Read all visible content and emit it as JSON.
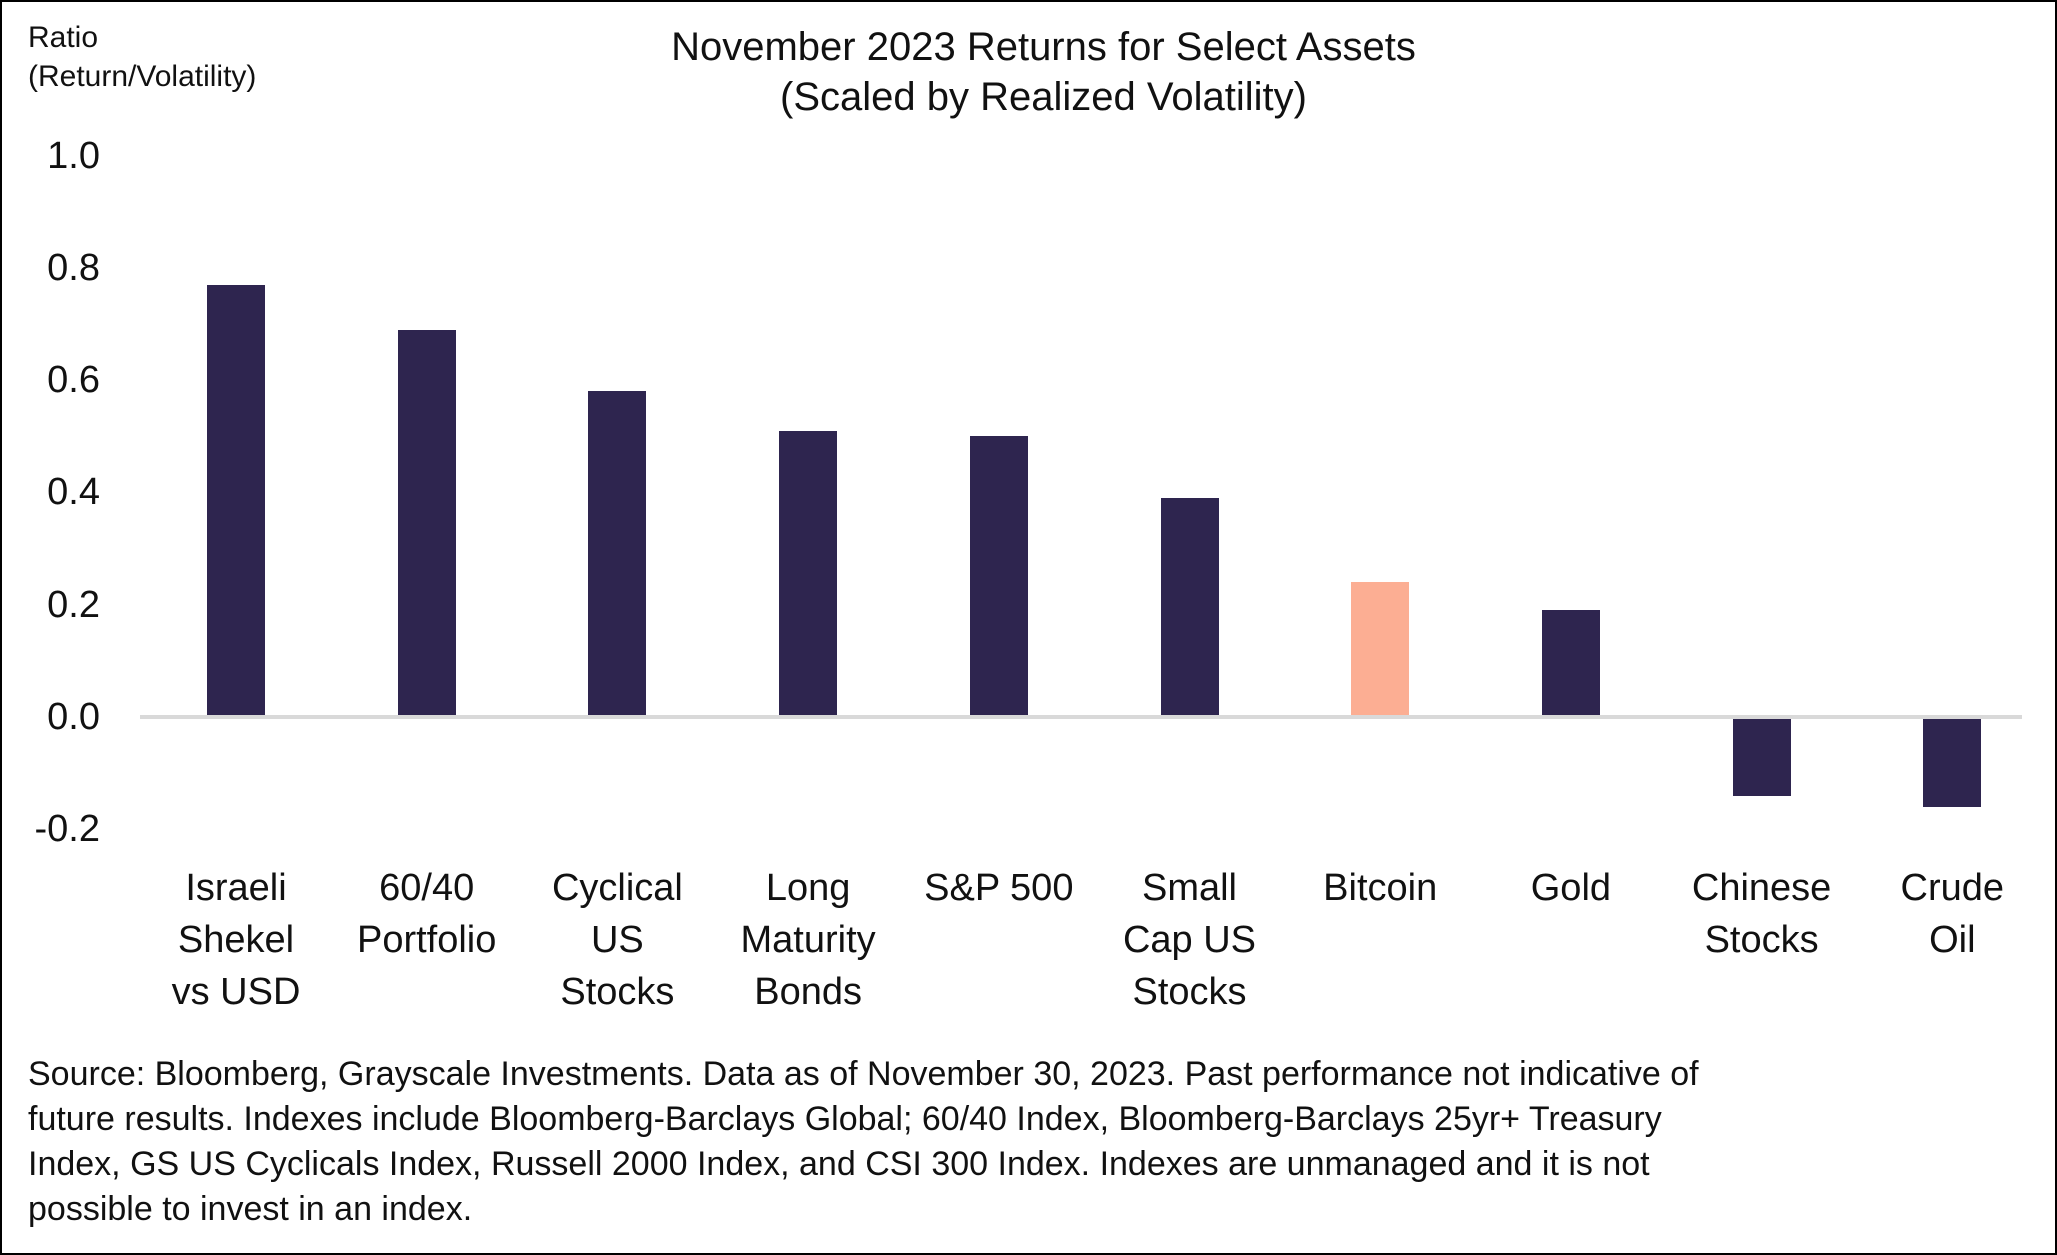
{
  "header": {
    "y_axis_title_lines": [
      "Ratio",
      "(Return/Volatility)"
    ],
    "title_lines": [
      "November 2023 Returns for Select Assets",
      "(Scaled by Realized Volatility)"
    ]
  },
  "chart_data": {
    "type": "bar",
    "title": "November 2023 Returns for Select Assets (Scaled by Realized Volatility)",
    "ylabel": "Ratio (Return/Volatility)",
    "xlabel": "",
    "ylim": [
      -0.2,
      1.0
    ],
    "yticks": [
      1.0,
      0.8,
      0.6,
      0.4,
      0.2,
      0.0,
      -0.2
    ],
    "ytick_labels": [
      "1.0",
      "0.8",
      "0.6",
      "0.4",
      "0.2",
      "0.0",
      "-0.2"
    ],
    "grid": false,
    "legend_position": "none",
    "categories": [
      "Israeli Shekel vs USD",
      "60/40 Portfolio",
      "Cyclical US Stocks",
      "Long Maturity Bonds",
      "S&P 500",
      "Small Cap US Stocks",
      "Bitcoin",
      "Gold",
      "Chinese Stocks",
      "Crude Oil"
    ],
    "category_label_lines": [
      [
        "Israeli",
        "Shekel",
        "vs USD"
      ],
      [
        "60/40",
        "Portfolio"
      ],
      [
        "Cyclical",
        "US",
        "Stocks"
      ],
      [
        "Long",
        "Maturity",
        "Bonds"
      ],
      [
        "S&P 500"
      ],
      [
        "Small",
        "Cap US",
        "Stocks"
      ],
      [
        "Bitcoin"
      ],
      [
        "Gold"
      ],
      [
        "Chinese",
        "Stocks"
      ],
      [
        "Crude",
        "Oil"
      ]
    ],
    "values": [
      0.77,
      0.69,
      0.58,
      0.51,
      0.5,
      0.39,
      0.24,
      0.19,
      -0.14,
      -0.16
    ],
    "highlight_category": "Bitcoin",
    "highlight_index": 6,
    "bar_color": "#2e254f",
    "highlight_color": "#fcae93",
    "zero_line_color": "#d9d9d9"
  },
  "footer": {
    "lines": [
      "Source: Bloomberg, Grayscale Investments. Data as of November 30, 2023. Past performance not indicative of",
      "future results. Indexes include Bloomberg-Barclays Global; 60/40 Index, Bloomberg-Barclays 25yr+ Treasury",
      "Index, GS US Cyclicals Index, Russell 2000 Index, and CSI 300 Index. Indexes are unmanaged and it is not",
      "possible to invest in an index."
    ]
  }
}
